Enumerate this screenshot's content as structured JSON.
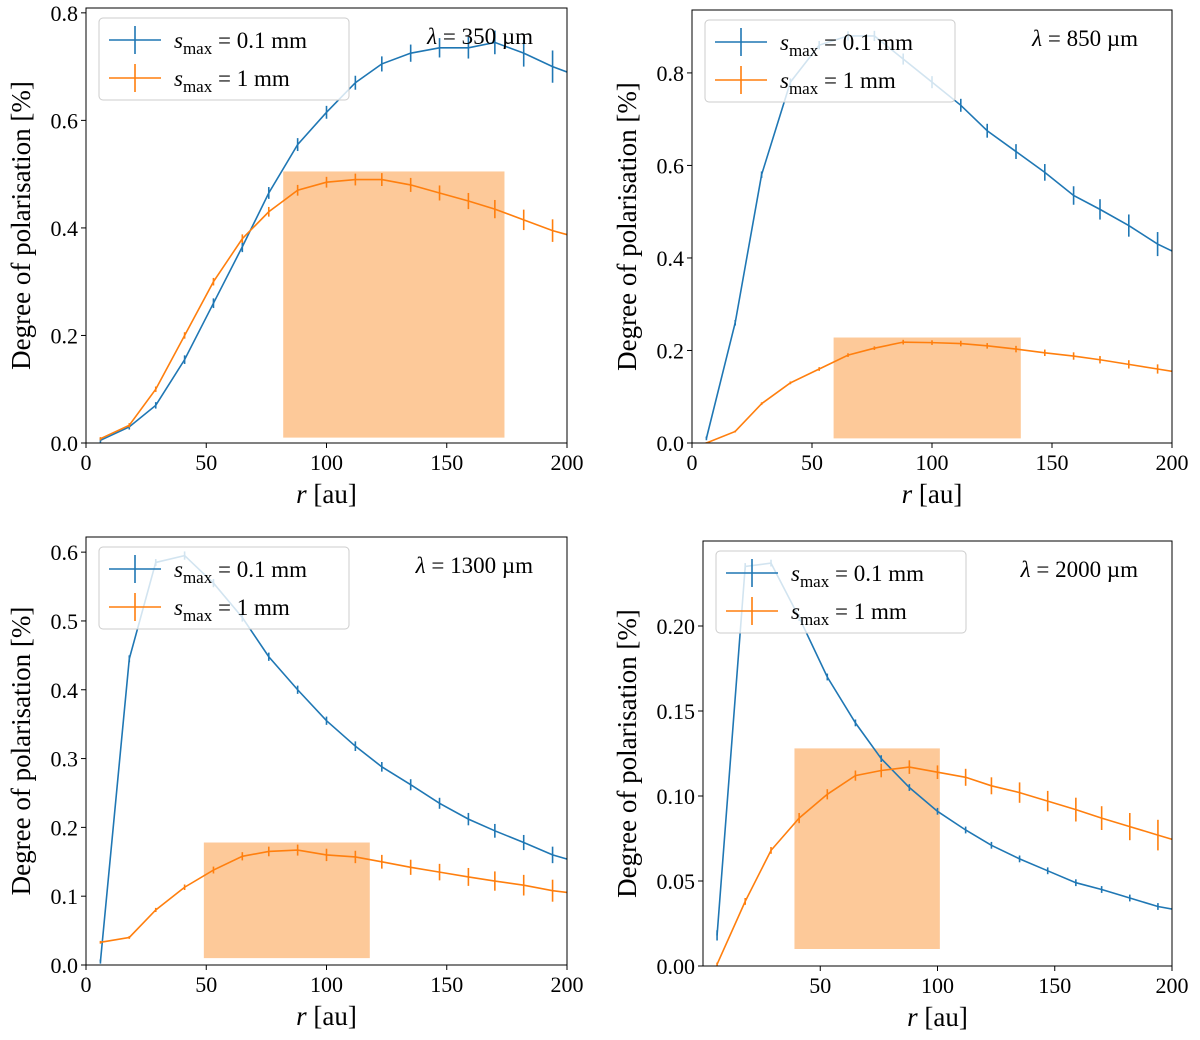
{
  "colors": {
    "blue": "#1f77b4",
    "orange": "#ff7f0e",
    "box": "#fdc999"
  },
  "legend_labels": [
    {
      "s": "s",
      "sub": "max",
      "rest": " = 0.1 mm"
    },
    {
      "s": "s",
      "sub": "max",
      "rest": " = 1 mm"
    }
  ],
  "chart_data": [
    {
      "type": "line",
      "title": "λ = 350 µm",
      "xlabel": "r [au]",
      "ylabel": "Degree of polarisation [%]",
      "xlim": [
        0,
        200
      ],
      "ylim": [
        0,
        0.809
      ],
      "xticks": [
        "0",
        "50",
        "100",
        "150",
        "200"
      ],
      "yticks": [
        "0.0",
        "0.2",
        "0.4",
        "0.6",
        "0.8"
      ],
      "legend": "top-left",
      "x": [
        6,
        18,
        29,
        41,
        53,
        65,
        76,
        88,
        100,
        112,
        123,
        135,
        147,
        159,
        170,
        182,
        194,
        206
      ],
      "series": [
        {
          "name": "s_max = 0.1 mm",
          "color": "blue",
          "values": [
            0.005,
            0.03,
            0.07,
            0.155,
            0.26,
            0.365,
            0.465,
            0.555,
            0.615,
            0.67,
            0.705,
            0.725,
            0.735,
            0.735,
            0.745,
            0.725,
            0.7,
            0.68
          ],
          "errors": [
            0.004,
            0.005,
            0.006,
            0.008,
            0.009,
            0.01,
            0.011,
            0.012,
            0.012,
            0.013,
            0.014,
            0.016,
            0.018,
            0.02,
            0.022,
            0.025,
            0.03,
            0.03
          ]
        },
        {
          "name": "s_max = 1 mm",
          "color": "orange",
          "values": [
            0.008,
            0.033,
            0.1,
            0.2,
            0.3,
            0.38,
            0.43,
            0.47,
            0.485,
            0.49,
            0.49,
            0.48,
            0.465,
            0.45,
            0.435,
            0.415,
            0.395,
            0.38
          ],
          "errors": [
            0.003,
            0.004,
            0.005,
            0.006,
            0.007,
            0.008,
            0.009,
            0.01,
            0.01,
            0.011,
            0.012,
            0.013,
            0.014,
            0.015,
            0.017,
            0.019,
            0.021,
            0.022
          ]
        }
      ],
      "highlight_box": {
        "x": [
          82,
          174
        ],
        "y": [
          0.01,
          0.505
        ]
      }
    },
    {
      "type": "line",
      "title": "λ = 850 µm",
      "xlabel": "r [au]",
      "ylabel": "Degree of polarisation [%]",
      "xlim": [
        0,
        200
      ],
      "ylim": [
        0,
        0.936
      ],
      "xticks": [
        "0",
        "50",
        "100",
        "150",
        "200"
      ],
      "yticks": [
        "0.0",
        "0.2",
        "0.4",
        "0.6",
        "0.8"
      ],
      "legend": "top-left",
      "x": [
        6,
        18,
        29,
        41,
        53,
        65,
        76,
        88,
        100,
        112,
        123,
        135,
        147,
        159,
        170,
        182,
        194,
        206
      ],
      "series": [
        {
          "name": "s_max = 0.1 mm",
          "color": "blue",
          "values": [
            0.01,
            0.26,
            0.58,
            0.78,
            0.86,
            0.88,
            0.88,
            0.83,
            0.78,
            0.73,
            0.675,
            0.63,
            0.585,
            0.535,
            0.505,
            0.47,
            0.43,
            0.4
          ],
          "errors": [
            0.004,
            0.006,
            0.007,
            0.008,
            0.009,
            0.01,
            0.011,
            0.012,
            0.013,
            0.014,
            0.015,
            0.016,
            0.018,
            0.02,
            0.022,
            0.024,
            0.026,
            0.028
          ]
        },
        {
          "name": "s_max = 1 mm",
          "color": "orange",
          "values": [
            0.0,
            0.025,
            0.085,
            0.13,
            0.16,
            0.19,
            0.205,
            0.218,
            0.217,
            0.215,
            0.21,
            0.203,
            0.195,
            0.188,
            0.18,
            0.17,
            0.16,
            0.15
          ],
          "errors": [
            0.002,
            0.002,
            0.003,
            0.003,
            0.004,
            0.004,
            0.004,
            0.005,
            0.005,
            0.006,
            0.006,
            0.007,
            0.007,
            0.008,
            0.008,
            0.009,
            0.01,
            0.01
          ]
        }
      ],
      "highlight_box": {
        "x": [
          59,
          137
        ],
        "y": [
          0.01,
          0.228
        ]
      }
    },
    {
      "type": "line",
      "title": "λ = 1300 µm",
      "xlabel": "r [au]",
      "ylabel": "Degree of polarisation [%]",
      "xlim": [
        0,
        200
      ],
      "ylim": [
        0,
        0.622
      ],
      "xticks": [
        "0",
        "50",
        "100",
        "150",
        "200"
      ],
      "yticks": [
        "0.0",
        "0.1",
        "0.2",
        "0.3",
        "0.4",
        "0.5",
        "0.6"
      ],
      "legend": "top-left",
      "x": [
        6,
        18,
        29,
        41,
        53,
        65,
        76,
        88,
        100,
        112,
        123,
        135,
        147,
        159,
        170,
        182,
        194,
        206
      ],
      "series": [
        {
          "name": "s_max = 0.1 mm",
          "color": "blue",
          "values": [
            0.005,
            0.445,
            0.585,
            0.595,
            0.555,
            0.505,
            0.448,
            0.4,
            0.355,
            0.318,
            0.288,
            0.262,
            0.235,
            0.212,
            0.195,
            0.178,
            0.16,
            0.148
          ],
          "errors": [
            0.003,
            0.005,
            0.005,
            0.006,
            0.006,
            0.006,
            0.006,
            0.006,
            0.006,
            0.007,
            0.007,
            0.008,
            0.008,
            0.009,
            0.01,
            0.011,
            0.012,
            0.013
          ]
        },
        {
          "name": "s_max = 1 mm",
          "color": "orange",
          "values": [
            0.033,
            0.04,
            0.08,
            0.113,
            0.138,
            0.158,
            0.165,
            0.167,
            0.16,
            0.157,
            0.15,
            0.142,
            0.135,
            0.128,
            0.122,
            0.116,
            0.108,
            0.103
          ],
          "errors": [
            0.002,
            0.002,
            0.003,
            0.004,
            0.005,
            0.006,
            0.007,
            0.008,
            0.009,
            0.009,
            0.01,
            0.011,
            0.012,
            0.013,
            0.014,
            0.015,
            0.016,
            0.017
          ]
        }
      ],
      "highlight_box": {
        "x": [
          49,
          118
        ],
        "y": [
          0.01,
          0.178
        ]
      }
    },
    {
      "type": "line",
      "title": "λ = 2000 µm",
      "xlabel": "r [au]",
      "ylabel": "Degree of polarisation [%]",
      "xlim": [
        0,
        200
      ],
      "ylim": [
        0,
        0.25
      ],
      "xticks": [
        "50",
        "100",
        "150",
        "200"
      ],
      "xtick_values": [
        50,
        100,
        150,
        200
      ],
      "yticks": [
        "0.00",
        "0.05",
        "0.10",
        "0.15",
        "0.20"
      ],
      "legend": "top-left",
      "x": [
        6,
        18,
        29,
        41,
        53,
        65,
        76,
        88,
        100,
        112,
        123,
        135,
        147,
        159,
        170,
        182,
        194,
        206
      ],
      "series": [
        {
          "name": "s_max = 0.1 mm",
          "color": "blue",
          "values": [
            0.018,
            0.235,
            0.237,
            0.205,
            0.17,
            0.143,
            0.122,
            0.105,
            0.091,
            0.08,
            0.071,
            0.063,
            0.056,
            0.049,
            0.045,
            0.04,
            0.035,
            0.032
          ],
          "errors": [
            0.003,
            0.002,
            0.002,
            0.002,
            0.002,
            0.002,
            0.002,
            0.002,
            0.002,
            0.002,
            0.002,
            0.002,
            0.002,
            0.002,
            0.002,
            0.002,
            0.002,
            0.002
          ]
        },
        {
          "name": "s_max = 1 mm",
          "color": "orange",
          "values": [
            0.001,
            0.038,
            0.068,
            0.087,
            0.101,
            0.112,
            0.115,
            0.117,
            0.114,
            0.111,
            0.106,
            0.102,
            0.097,
            0.092,
            0.087,
            0.082,
            0.077,
            0.072
          ],
          "errors": [
            0.001,
            0.002,
            0.002,
            0.003,
            0.003,
            0.003,
            0.004,
            0.004,
            0.004,
            0.005,
            0.005,
            0.006,
            0.006,
            0.007,
            0.007,
            0.008,
            0.009,
            0.01
          ]
        }
      ],
      "highlight_box": {
        "x": [
          39,
          101
        ],
        "y": [
          0.01,
          0.128
        ]
      }
    }
  ]
}
